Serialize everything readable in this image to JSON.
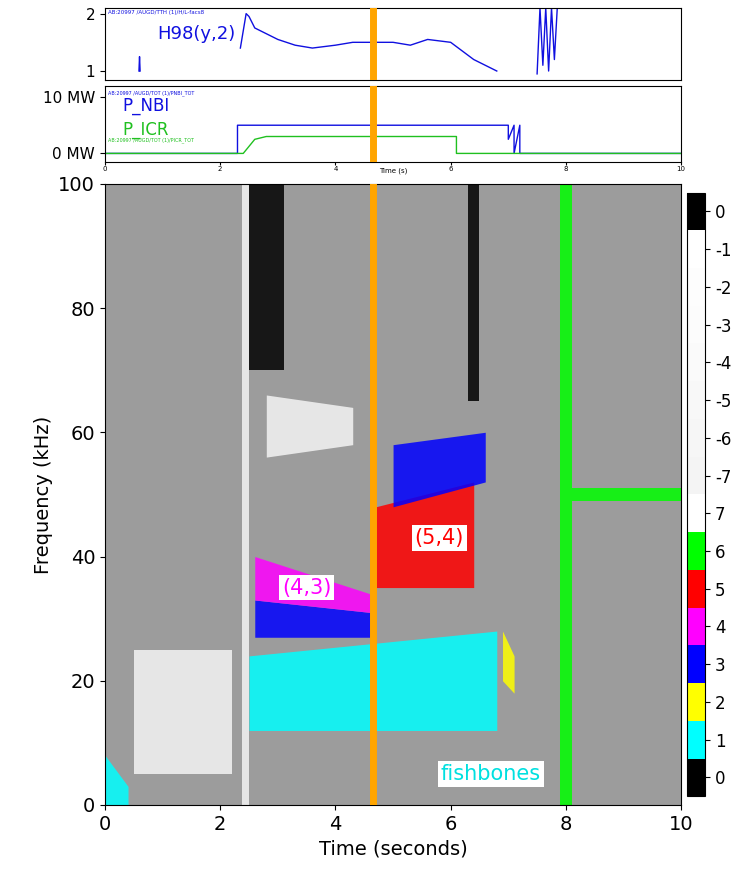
{
  "chart_data": [
    {
      "type": "line",
      "series": [
        {
          "name": "H98(y,2)",
          "color": "#1010e0",
          "x": [
            0.59,
            0.6,
            0.61,
            0.62,
            2.35,
            2.45,
            2.5,
            2.6,
            2.8,
            3.0,
            3.3,
            3.6,
            4.0,
            4.3,
            4.6,
            5.0,
            5.3,
            5.6,
            6.0,
            6.2,
            6.4,
            6.6,
            6.8,
            6.85,
            7.5,
            7.55,
            7.6,
            7.65,
            7.7,
            7.75,
            7.8,
            7.85
          ],
          "values": [
            1.0,
            1.25,
            1.0,
            null,
            1.4,
            2.0,
            1.95,
            1.75,
            1.65,
            1.55,
            1.45,
            1.4,
            1.45,
            1.5,
            1.5,
            1.5,
            1.45,
            1.55,
            1.5,
            1.35,
            1.2,
            1.1,
            1.0,
            null,
            0.95,
            2.1,
            1.1,
            2.1,
            1.0,
            2.1,
            1.2,
            2.1
          ]
        }
      ],
      "annotations": [
        {
          "text": "H98(y,2)",
          "x": 0.9,
          "y": 1.55,
          "color": "#1010e0"
        },
        {
          "text": "AB:20997 /AUGD/TTH (1)/H/L-facs8",
          "x": 0.05,
          "y": 2.0,
          "color": "#1010e0"
        }
      ],
      "xlim": [
        0,
        10
      ],
      "ylim": [
        0.85,
        2.1
      ],
      "yticks": [
        1,
        2
      ],
      "tick_labels": "y",
      "vertical_line": {
        "x": 4.65,
        "color": "#ffa500"
      }
    },
    {
      "type": "line",
      "series": [
        {
          "name": "P_NBI",
          "color": "#1010e0",
          "x": [
            0,
            2.3,
            2.3,
            7.0,
            7.0,
            7.1,
            7.1,
            7.2,
            7.2,
            7.3,
            10
          ],
          "values": [
            0,
            0,
            5,
            5,
            2.5,
            5,
            0,
            5,
            0,
            0,
            0
          ]
        },
        {
          "name": "P_ICR",
          "color": "#20c020",
          "x": [
            0,
            2.4,
            2.6,
            2.8,
            6.1,
            6.1,
            10
          ],
          "values": [
            0,
            0,
            2.5,
            3,
            3,
            0,
            0
          ]
        }
      ],
      "annotations": [
        {
          "text": "AB:20997 /AUGD/TOT (1)/PNBI_TOT",
          "x": 0.05,
          "y": 10.5,
          "color": "#1010e0"
        },
        {
          "text": "AB:20997 /AUGD/TOT (1)/PICR_TOT",
          "x": 0.05,
          "y": 2.2,
          "color": "#20c020"
        }
      ],
      "xlabel": "Time (s)",
      "xlim": [
        0,
        10
      ],
      "ylim": [
        -1.5,
        12
      ],
      "xticks": [
        0,
        2,
        4,
        6,
        8,
        10
      ],
      "yticks": [
        {
          "value": 0,
          "label": "0 MW"
        },
        {
          "value": 10,
          "label": "10 MW"
        }
      ],
      "vertical_line": {
        "x": 4.65,
        "color": "#ffa500"
      }
    },
    {
      "type": "spectrogram",
      "xlabel": "Time (seconds)",
      "ylabel": "Frequency (kHz)",
      "xlim": [
        0,
        10
      ],
      "ylim": [
        0,
        100
      ],
      "xticks": [
        0,
        2,
        4,
        6,
        8,
        10
      ],
      "yticks": [
        0,
        20,
        40,
        60,
        80,
        100
      ],
      "colorbar": {
        "levels": [
          0,
          1,
          2,
          3,
          4,
          5,
          6,
          7,
          -7,
          -6,
          -5,
          -4,
          -3,
          -2,
          -1,
          0
        ],
        "colors": [
          "#000000",
          "#00ffff",
          "#ffff00",
          "#0000ff",
          "#ff00ff",
          "#ff0000",
          "#00ff00",
          "#ffffff",
          "#f4f4f4",
          "#f6f6f6",
          "#f8f8f8",
          "#fafafa",
          "#fcfcfc",
          "#fdfdfd",
          "#ffffff",
          "#000000"
        ]
      },
      "bands": [
        {
          "level": 8,
          "t": [
            0.5,
            2.2
          ],
          "f_low": [
            5,
            5
          ],
          "f_high": [
            25,
            25
          ]
        },
        {
          "level": 1,
          "t": [
            0.0,
            0.4
          ],
          "f_low": [
            0,
            0
          ],
          "f_high": [
            8,
            3
          ]
        },
        {
          "level": 8,
          "t": [
            2.38,
            2.5
          ],
          "f_low": [
            0,
            0
          ],
          "f_high": [
            100,
            100
          ]
        },
        {
          "level": 15,
          "t": [
            2.5,
            3.1
          ],
          "f_low": [
            70,
            70
          ],
          "f_high": [
            100,
            100
          ]
        },
        {
          "level": 8,
          "t": [
            2.8,
            4.3
          ],
          "f_low": [
            56,
            58
          ],
          "f_high": [
            66,
            64
          ]
        },
        {
          "level": 1,
          "t": [
            2.5,
            6.8
          ],
          "f_low": [
            12,
            12
          ],
          "f_high": [
            24,
            28
          ]
        },
        {
          "level": 3,
          "t": [
            2.6,
            4.6
          ],
          "f_low": [
            27,
            27
          ],
          "f_high": [
            33,
            31
          ]
        },
        {
          "level": 4,
          "t": [
            2.6,
            4.6
          ],
          "f_low": [
            33,
            31
          ],
          "f_high": [
            40,
            34
          ]
        },
        {
          "level": 5,
          "t": [
            4.7,
            6.4
          ],
          "f_low": [
            35,
            35
          ],
          "f_high": [
            48,
            52
          ]
        },
        {
          "level": 3,
          "t": [
            5.0,
            6.6
          ],
          "f_low": [
            48,
            52
          ],
          "f_high": [
            58,
            60
          ]
        },
        {
          "level": 15,
          "t": [
            6.3,
            6.5
          ],
          "f_low": [
            65,
            65
          ],
          "f_high": [
            100,
            100
          ]
        },
        {
          "level": 2,
          "t": [
            6.9,
            7.1
          ],
          "f_low": [
            20,
            18
          ],
          "f_high": [
            28,
            24
          ]
        },
        {
          "level": 6,
          "t": [
            7.9,
            8.1
          ],
          "f_low": [
            0,
            0
          ],
          "f_high": [
            100,
            100
          ]
        },
        {
          "level": 6,
          "t": [
            8.1,
            10.0
          ],
          "f_low": [
            49,
            49
          ],
          "f_high": [
            51,
            51
          ]
        }
      ],
      "annotations": [
        {
          "text": "(4,3)",
          "x": 3.5,
          "y": 35,
          "color": "#ff00ff"
        },
        {
          "text": "(5,4)",
          "x": 5.8,
          "y": 43,
          "color": "#ff0000"
        },
        {
          "text": "fishbones",
          "x": 6.7,
          "y": 5,
          "color": "#00e0e0"
        }
      ],
      "vertical_line": {
        "x": 4.65,
        "color": "#ffa500"
      }
    }
  ]
}
